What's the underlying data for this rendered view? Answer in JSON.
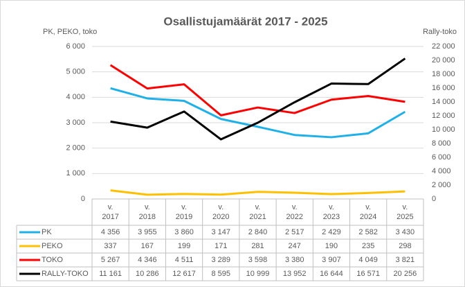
{
  "chart_data": {
    "type": "line",
    "title": "Osallistujamäärät 2017 - 2025",
    "y_label": "PK, PEKO, toko",
    "y2_label": "Rally-toko",
    "categories": [
      "v. 2017",
      "v. 2018",
      "v. 2019",
      "v. 2020",
      "v. 2021",
      "v. 2022",
      "v. 2023",
      "v. 2024",
      "v. 2025"
    ],
    "ylim": [
      0,
      6000
    ],
    "yticks": [
      0,
      {
        "value": 1000,
        "label": "1 000"
      },
      {
        "value": 2000,
        "label": "2 000"
      },
      {
        "value": 3000,
        "label": "3 000"
      },
      {
        "value": 4000,
        "label": "4 000"
      },
      {
        "value": 5000,
        "label": "5 000"
      },
      {
        "value": 6000,
        "label": "6 000"
      }
    ],
    "y2lim": [
      0,
      22000
    ],
    "y2ticks": [
      0,
      {
        "value": 2000,
        "label": "2 000"
      },
      {
        "value": 4000,
        "label": "4 000"
      },
      {
        "value": 6000,
        "label": "6 000"
      },
      {
        "value": 8000,
        "label": "8 000"
      },
      {
        "value": 10000,
        "label": "10 000"
      },
      {
        "value": 12000,
        "label": "12 000"
      },
      {
        "value": 14000,
        "label": "14 000"
      },
      {
        "value": 16000,
        "label": "16 000"
      },
      {
        "value": 18000,
        "label": "18 000"
      },
      {
        "value": 20000,
        "label": "20 000"
      },
      {
        "value": 22000,
        "label": "22 000"
      }
    ],
    "grid": true,
    "series": [
      {
        "name": "PK",
        "color": "#1fb0e8",
        "values": [
          4356,
          3955,
          3860,
          3147,
          2840,
          2517,
          2429,
          2582,
          3430
        ],
        "value_labels": [
          "4 356",
          "3 955",
          "3 860",
          "3 147",
          "2 840",
          "2 517",
          "2 429",
          "2 582",
          "3 430"
        ]
      },
      {
        "name": "PEKO",
        "color": "#ffc000",
        "values": [
          337,
          167,
          199,
          171,
          281,
          247,
          190,
          235,
          298
        ]
      },
      {
        "name": "TOKO",
        "color": "#ff0000",
        "values": [
          5267,
          4346,
          4511,
          3289,
          3598,
          3380,
          3907,
          4049,
          3821
        ],
        "value_labels": [
          "5 267",
          "4 346",
          "4 511",
          "3 289",
          "3 598",
          "3 380",
          "3 907",
          "4 049",
          "3 821"
        ]
      },
      {
        "name": "RALLY-TOKO",
        "color": "#000000",
        "axis": "y2",
        "values": [
          11161,
          10286,
          12617,
          8595,
          10999,
          13952,
          16644,
          16571,
          20256
        ],
        "value_labels": [
          "11 161",
          "10 286",
          "12 617",
          "8 595",
          "10 999",
          "13 952",
          "16 644",
          "16 571",
          "20 256"
        ]
      }
    ]
  }
}
